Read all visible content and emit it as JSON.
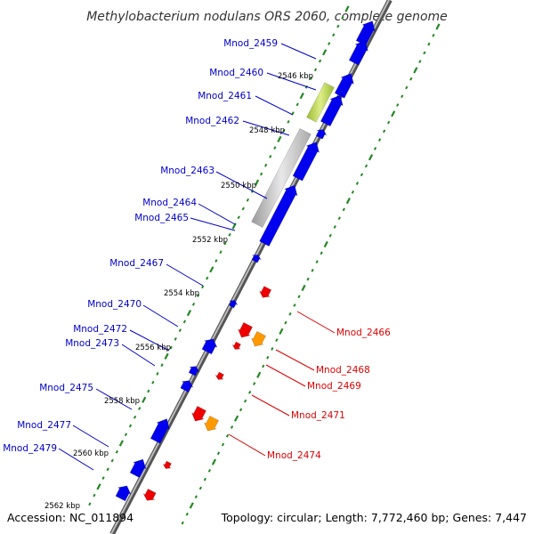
{
  "title": "Methylobacterium nodulans ORS 2060, complete genome",
  "footer": {
    "accession": "Accession: NC_011894",
    "topology": "Topology: circular; Length: 7,772,460 bp; Genes: 7,447"
  },
  "colors": {
    "forward_gene": "#0000ee",
    "reverse_gene": "#ee0000",
    "reverse_gene_alt": "#ff9900",
    "rrna_like": "#aacc44",
    "rna_gray": "#bbbbbb",
    "backbone": "#888888",
    "tick_green": "#228822",
    "forward_label": "#0000cc",
    "reverse_label": "#dd0000"
  },
  "kbp_ticks": [
    "2546 kbp",
    "2548 kbp",
    "2550 kbp",
    "2552 kbp",
    "2554 kbp",
    "2556 kbp",
    "2558 kbp",
    "2560 kbp",
    "2562 kbp"
  ],
  "forward_labels": [
    "Mnod_2459",
    "Mnod_2460",
    "Mnod_2461",
    "Mnod_2462",
    "Mnod_2463",
    "Mnod_2464",
    "Mnod_2465",
    "Mnod_2467",
    "Mnod_2470",
    "Mnod_2472",
    "Mnod_2473",
    "Mnod_2475",
    "Mnod_2477",
    "Mnod_2479"
  ],
  "reverse_labels": [
    "Mnod_2466",
    "Mnod_2468",
    "Mnod_2469",
    "Mnod_2471",
    "Mnod_2474"
  ]
}
